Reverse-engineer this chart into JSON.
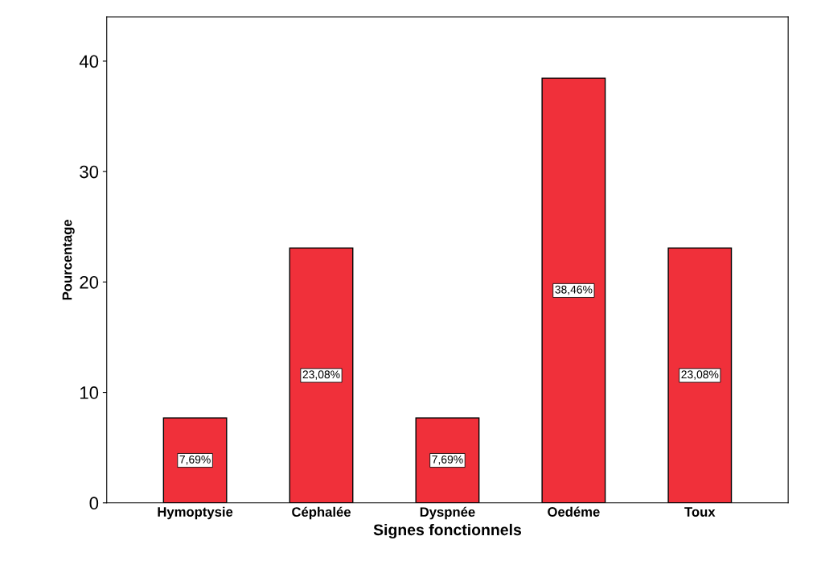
{
  "chart_data": {
    "type": "bar",
    "xlabel": "Signes fonctionnels",
    "ylabel": "Pourcentage",
    "categories": [
      "Hymoptysie",
      "Céphalée",
      "Dyspnée",
      "Oedéme",
      "Toux"
    ],
    "values": [
      7.69,
      23.08,
      7.69,
      38.46,
      23.08
    ],
    "value_labels": [
      "7,69%",
      "23,08%",
      "7,69%",
      "38,46%",
      "23,08%"
    ],
    "color": "#f0303a",
    "ylim": [
      0,
      44
    ],
    "yticks": [
      0,
      10,
      20,
      30,
      40
    ],
    "grid": false,
    "legend": false
  }
}
